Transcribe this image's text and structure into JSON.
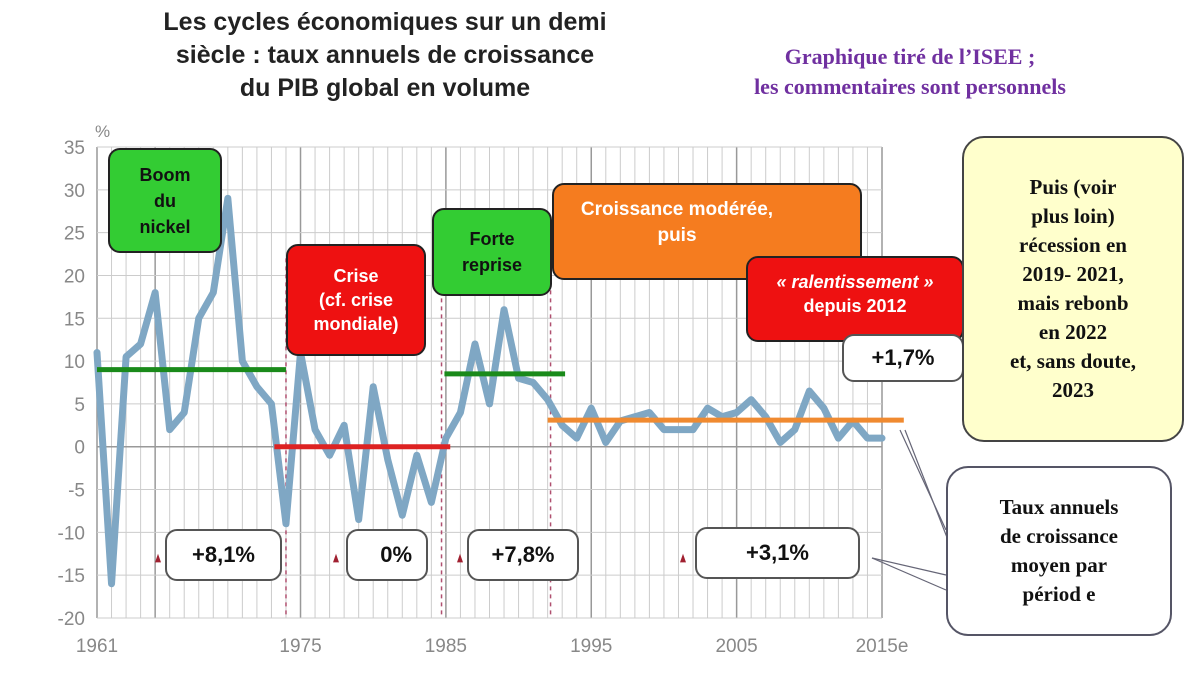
{
  "chart_data": {
    "type": "line",
    "title": "Les cycles économiques sur un demi siècle : taux annuels de croissance du PIB global en volume",
    "ylabel": "%",
    "ylim": [
      -20,
      35
    ],
    "yticks": [
      35,
      30,
      25,
      20,
      15,
      10,
      5,
      0,
      -5,
      -10,
      -15,
      -20
    ],
    "xlim": [
      1961,
      2015
    ],
    "xtick_labels": [
      {
        "year": 1961,
        "label": "1961"
      },
      {
        "year": 1975,
        "label": "1975"
      },
      {
        "year": 1985,
        "label": "1985"
      },
      {
        "year": 1995,
        "label": "1995"
      },
      {
        "year": 2005,
        "label": "2005"
      },
      {
        "year": 2015,
        "label": "2015e"
      }
    ],
    "grid": true,
    "x": [
      1961,
      1962,
      1963,
      1964,
      1965,
      1966,
      1967,
      1968,
      1969,
      1970,
      1971,
      1972,
      1973,
      1974,
      1975,
      1976,
      1977,
      1978,
      1979,
      1980,
      1981,
      1982,
      1983,
      1984,
      1985,
      1986,
      1987,
      1988,
      1989,
      1990,
      1991,
      1992,
      1993,
      1994,
      1995,
      1996,
      1997,
      1998,
      1999,
      2000,
      2001,
      2002,
      2003,
      2004,
      2005,
      2006,
      2007,
      2008,
      2009,
      2010,
      2011,
      2012,
      2013,
      2014,
      2015
    ],
    "series": [
      {
        "name": "Taux annuels de croissance",
        "color": "#7fa7c4",
        "values": [
          11,
          -16,
          10.5,
          12,
          18,
          2,
          4,
          15,
          18,
          29,
          10,
          7,
          5,
          -9,
          11,
          2,
          -1,
          2.5,
          -8.5,
          7,
          -1.5,
          -8,
          -1,
          -6.5,
          1,
          4,
          12,
          5,
          16,
          8,
          7.5,
          5.5,
          2.5,
          1,
          4.5,
          0.5,
          3,
          3.5,
          4,
          2,
          2,
          2,
          4.5,
          3.5,
          4,
          5.5,
          3.5,
          0.5,
          2,
          6.5,
          4.5,
          1,
          3,
          1,
          1
        ]
      }
    ],
    "period_averages": [
      {
        "from": 1961,
        "to": 1974,
        "value": 8.1,
        "label": "+8,1%",
        "line_value": 9,
        "color": "#1a8a1a"
      },
      {
        "from": 1973.2,
        "to": 1985.3,
        "value": 0,
        "label": "0%",
        "line_value": 0,
        "color": "#dd2222"
      },
      {
        "from": 1984.9,
        "to": 1993.2,
        "value": 7.8,
        "label": "+7,8%",
        "line_value": 8.5,
        "color": "#1a8a1a"
      },
      {
        "from": 1992,
        "to": 2016.5,
        "value": 3.1,
        "label": "+3,1%",
        "line_value": 3.1,
        "color": "#f08a30"
      }
    ],
    "dividers": [
      1974,
      1984.7,
      1992.2
    ]
  },
  "header": {
    "title_lines": [
      "Les cycles économiques sur un demi",
      "siècle : taux annuels de croissance",
      "du PIB global en volume"
    ],
    "source_lines": [
      "Graphique tiré de l’ISEE ;",
      "les commentaires sont personnels"
    ]
  },
  "annotations": {
    "boom": [
      "Boom",
      "du",
      "nickel"
    ],
    "crise": [
      "Crise",
      "(cf. crise",
      "mondiale)"
    ],
    "reprise": [
      "Forte",
      "reprise"
    ],
    "moderee": [
      "Croissance modérée,",
      "puis"
    ],
    "ralentissement": [
      "« ralentissement »",
      "depuis  2012"
    ],
    "since2012": "+1,7%",
    "note": [
      "Puis (voir",
      "plus loin)",
      "récession en",
      "2019- 2021,",
      "mais rebonb",
      "en 2022",
      "et, sans doute,",
      "2023"
    ],
    "legend": [
      "Taux annuels",
      "de croissance",
      "moyen par",
      "périod e"
    ]
  }
}
